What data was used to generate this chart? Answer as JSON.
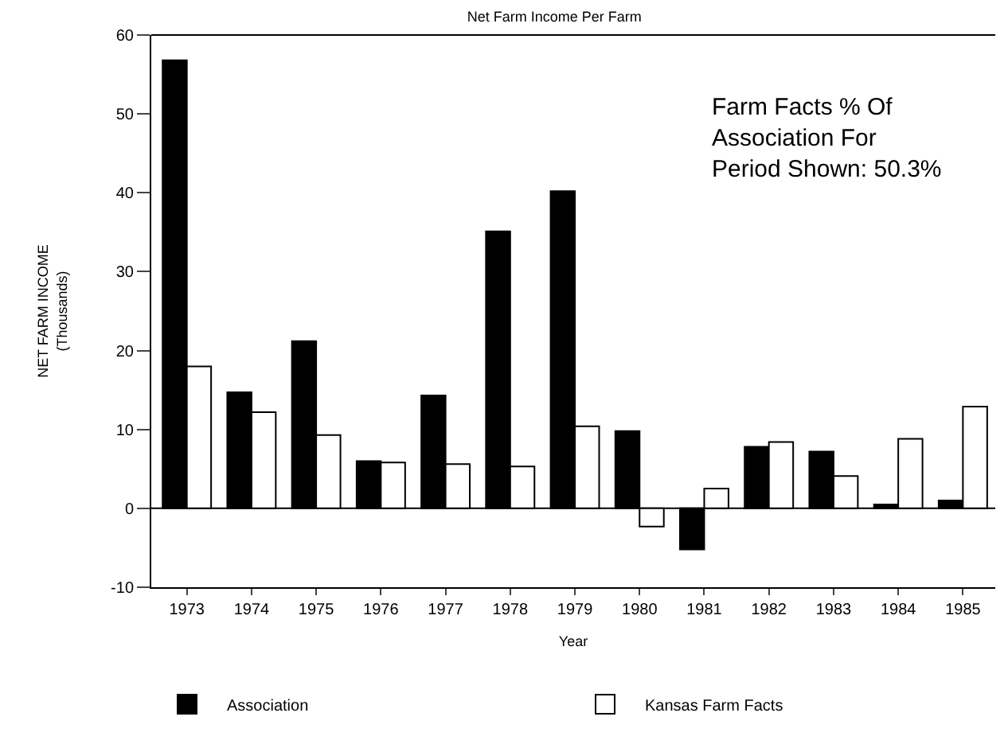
{
  "chart_data": {
    "type": "bar",
    "title": "Net Farm Income Per Farm",
    "xlabel": "Year",
    "ylabel": "NET FARM INCOME\n(Thousands)",
    "categories": [
      "1973",
      "1974",
      "1975",
      "1976",
      "1977",
      "1978",
      "1979",
      "1980",
      "1981",
      "1982",
      "1983",
      "1984",
      "1985"
    ],
    "series": [
      {
        "name": "Association",
        "color": "#000000",
        "values": [
          56.8,
          14.7,
          21.2,
          6.0,
          14.3,
          35.1,
          40.2,
          9.8,
          -5.2,
          7.8,
          7.2,
          0.5,
          1.0
        ]
      },
      {
        "name": "Kansas Farm Facts",
        "color": "#ffffff",
        "values": [
          18.0,
          12.2,
          9.3,
          5.8,
          5.6,
          5.3,
          10.4,
          -2.3,
          2.5,
          8.4,
          4.1,
          8.8,
          12.9
        ]
      }
    ],
    "ref_lines": [
      {
        "axis": "y",
        "value": 0
      }
    ],
    "ylim": [
      -10,
      60
    ],
    "yticks": [
      -10,
      0,
      10,
      20,
      30,
      40,
      50,
      60
    ],
    "grid": false,
    "legend": "bottom",
    "annotations": [
      "Farm Facts % Of\nAssociation For\nPeriod Shown: 50.3%"
    ]
  }
}
